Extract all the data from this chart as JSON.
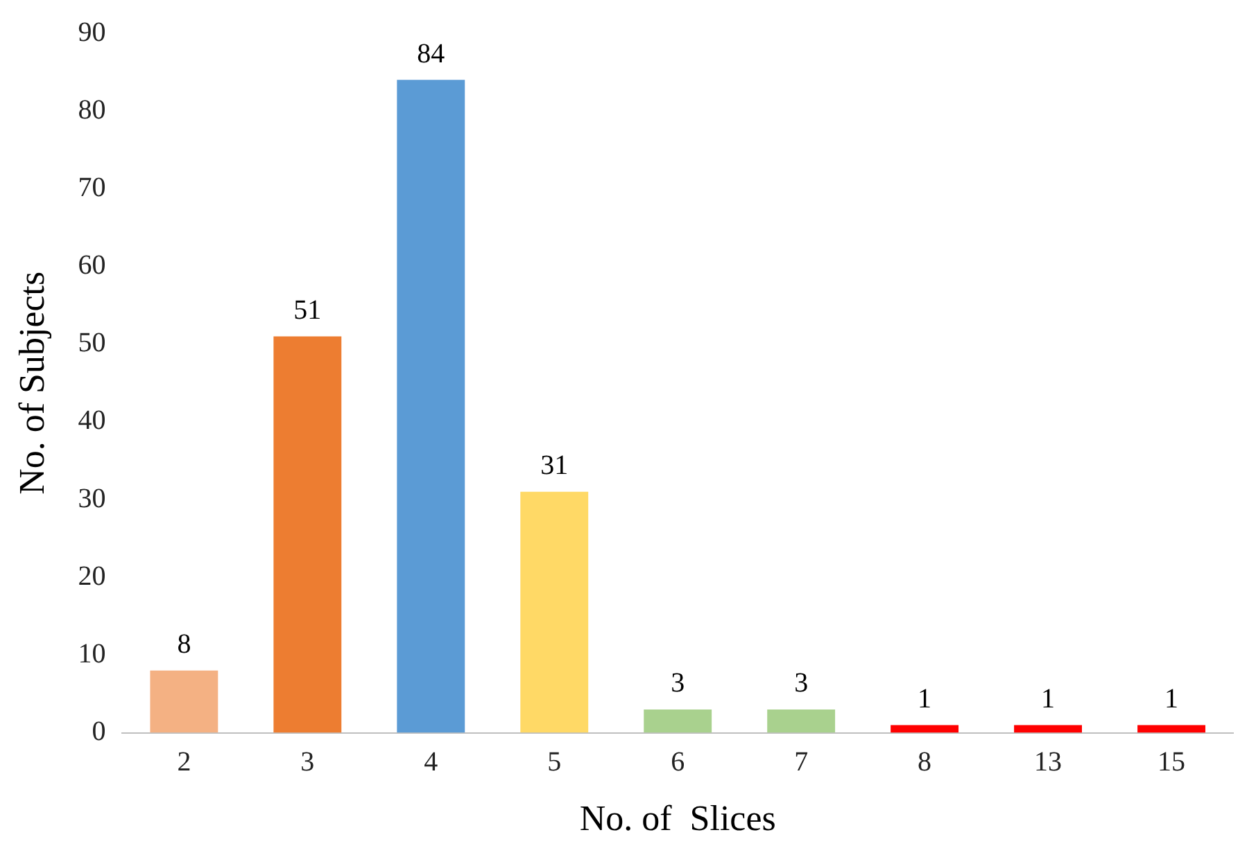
{
  "chart_data": {
    "type": "bar",
    "xlabel": "No. of  Slices",
    "ylabel": "No. of Subjects",
    "categories": [
      "2",
      "3",
      "4",
      "5",
      "6",
      "7",
      "8",
      "13",
      "15"
    ],
    "values": [
      8,
      51,
      84,
      31,
      3,
      3,
      1,
      1,
      1
    ],
    "colors": [
      "#f4b183",
      "#ed7d31",
      "#5b9bd5",
      "#ffd966",
      "#a9d18e",
      "#a9d18e",
      "#ff0000",
      "#ff0000",
      "#ff0000"
    ],
    "ylim": [
      0,
      90
    ],
    "yticks": [
      0,
      10,
      20,
      30,
      40,
      50,
      60,
      70,
      80,
      90
    ],
    "grid": false,
    "legend": false,
    "data_labels": true
  }
}
